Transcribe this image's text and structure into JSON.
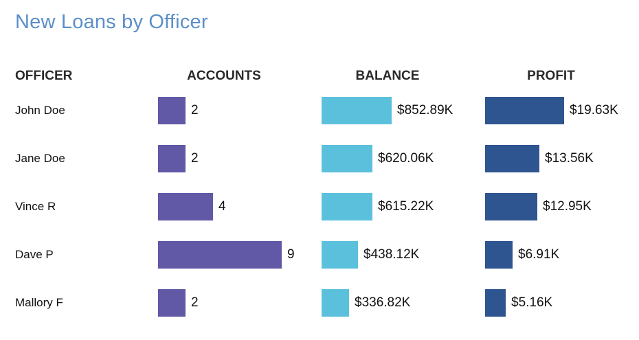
{
  "title": "New Loans by Officer",
  "headers": {
    "officer": "OFFICER",
    "accounts": "ACCOUNTS",
    "balance": "BALANCE",
    "profit": "PROFIT"
  },
  "colors": {
    "title": "#5b8fc9",
    "accounts": "#6158a6",
    "balance": "#5bc0dc",
    "profit": "#2f5590"
  },
  "chart_data": {
    "type": "table",
    "columns": [
      "OFFICER",
      "ACCOUNTS",
      "BALANCE",
      "PROFIT"
    ],
    "rows": [
      {
        "officer": "John Doe",
        "accounts": 2,
        "accounts_label": "2",
        "balance": 852.89,
        "balance_label": "$852.89K",
        "profit": 19.63,
        "profit_label": "$19.63K"
      },
      {
        "officer": "Jane Doe",
        "accounts": 2,
        "accounts_label": "2",
        "balance": 620.06,
        "balance_label": "$620.06K",
        "profit": 13.56,
        "profit_label": "$13.56K"
      },
      {
        "officer": "Vince R",
        "accounts": 4,
        "accounts_label": "4",
        "balance": 615.22,
        "balance_label": "$615.22K",
        "profit": 12.95,
        "profit_label": "$12.95K"
      },
      {
        "officer": "Dave P",
        "accounts": 9,
        "accounts_label": "9",
        "balance": 438.12,
        "balance_label": "$438.12K",
        "profit": 6.91,
        "profit_label": "$6.91K"
      },
      {
        "officer": "Mallory F",
        "accounts": 2,
        "accounts_label": "2",
        "balance": 336.82,
        "balance_label": "$336.82K",
        "profit": 5.16,
        "profit_label": "$5.16K"
      }
    ]
  }
}
